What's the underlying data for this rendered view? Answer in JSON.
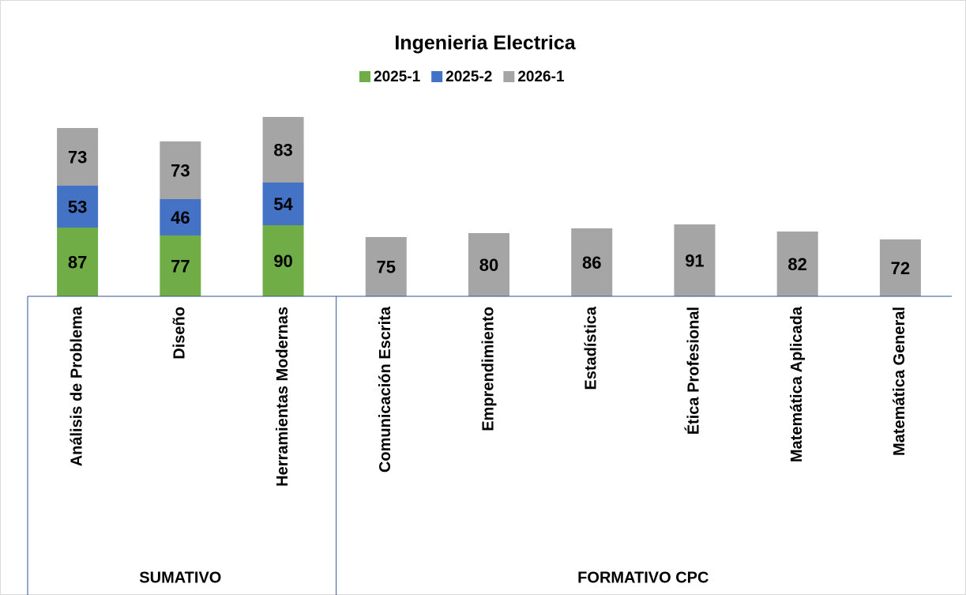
{
  "chart_data": {
    "type": "bar",
    "stacked": true,
    "title": "Ingenieria Electrica",
    "categories": [
      "Análisis de Problema",
      "Diseño",
      "Herramientas Modernas",
      "Comunicación Escrita",
      "Emprendimiento",
      "Estadística",
      "Ética Profesional",
      "Matemática Aplicada",
      "Matemática General"
    ],
    "groups": [
      {
        "name": "SUMATIVO",
        "count": 3
      },
      {
        "name": "FORMATIVO CPC",
        "count": 6
      }
    ],
    "series": [
      {
        "name": "2025-1",
        "color": "#70ad47",
        "values": [
          87,
          77,
          90,
          null,
          null,
          null,
          null,
          null,
          null
        ]
      },
      {
        "name": "2025-2",
        "color": "#4472c4",
        "values": [
          53,
          46,
          54,
          null,
          null,
          null,
          null,
          null,
          null
        ]
      },
      {
        "name": "2026-1",
        "color": "#a5a5a5",
        "values": [
          73,
          73,
          83,
          75,
          80,
          86,
          91,
          82,
          72
        ]
      }
    ]
  }
}
